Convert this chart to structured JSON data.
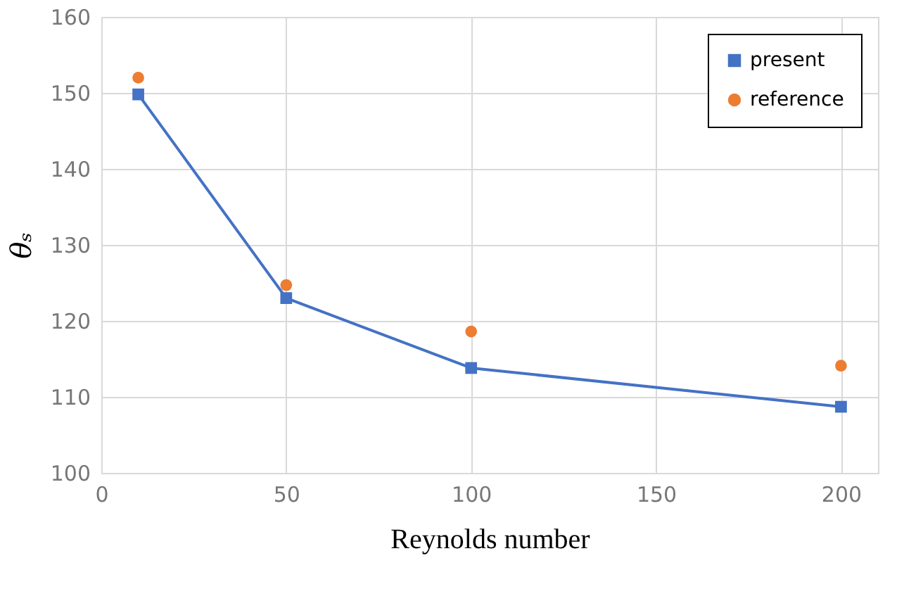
{
  "chart_data": {
    "type": "line",
    "xlabel": "Reynolds number",
    "ylabel": "θₛ",
    "x": [
      10,
      50,
      100,
      200
    ],
    "series": [
      {
        "name": "present",
        "color": "#4472c4",
        "marker": "square",
        "values": [
          149.8,
          123.0,
          113.8,
          108.7
        ]
      },
      {
        "name": "reference",
        "color": "#ed7d31",
        "type": "scatter",
        "marker": "circle",
        "values": [
          152.0,
          124.7,
          118.6,
          114.1
        ]
      }
    ],
    "xlim": [
      0,
      210
    ],
    "xticks": [
      0,
      50,
      100,
      150,
      200
    ],
    "ylim": [
      100,
      160
    ],
    "yticks": [
      100,
      110,
      120,
      130,
      140,
      150,
      160
    ],
    "grid": true,
    "legend": "top right"
  }
}
